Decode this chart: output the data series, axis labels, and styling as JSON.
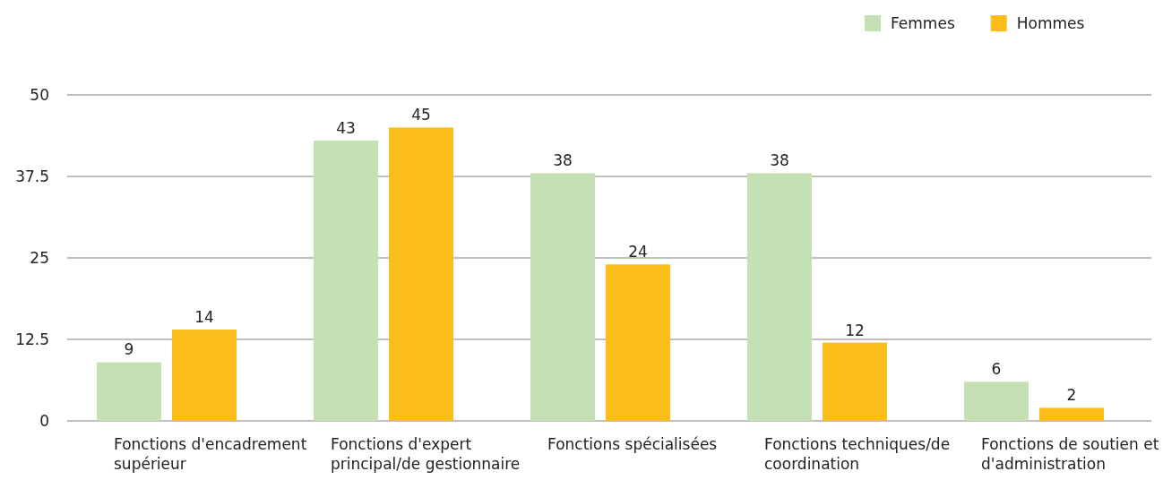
{
  "chart_data": {
    "type": "bar",
    "categories": [
      "Fonctions d'encadrement supérieur",
      "Fonctions d'expert principal/de gestionnaire",
      "Fonctions spécialisées",
      "Fonctions techniques/de coordination",
      "Fonctions de soutien et d'administration"
    ],
    "series": [
      {
        "name": "Femmes",
        "color": "#c5e0b4",
        "values": [
          9,
          43,
          38,
          38,
          6
        ]
      },
      {
        "name": "Hommes",
        "color": "#fbbd19",
        "values": [
          14,
          45,
          24,
          12,
          2
        ]
      }
    ],
    "ylim": [
      0,
      50
    ],
    "yticks": [
      0,
      12.5,
      25,
      37.5,
      50
    ],
    "grid": "y",
    "legend": "top right",
    "data_labels": true
  }
}
